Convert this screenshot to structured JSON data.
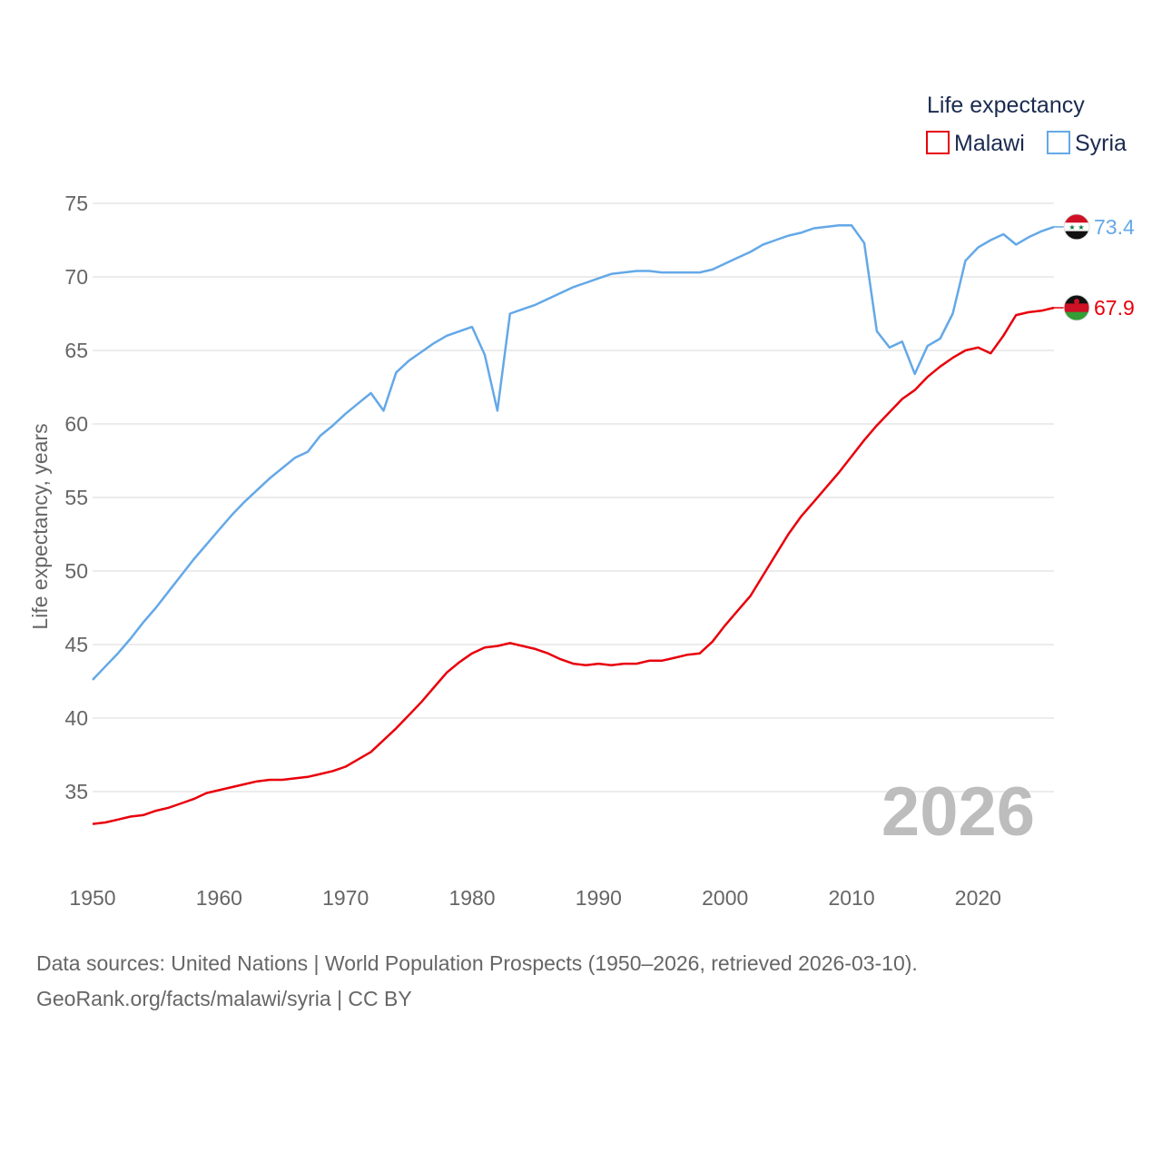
{
  "chart_data": {
    "type": "line",
    "legend_title": "Life expectancy",
    "ylabel": "Life expectancy, years",
    "xlabel": "",
    "xlim": [
      1950,
      2026
    ],
    "ylim": [
      30,
      75
    ],
    "x_ticks": [
      1950,
      1960,
      1970,
      1980,
      1990,
      2000,
      2010,
      2020
    ],
    "y_ticks": [
      35,
      40,
      45,
      50,
      55,
      60,
      65,
      70,
      75
    ],
    "year_watermark": "2026",
    "legend_position": "top-right",
    "series": [
      {
        "name": "Malawi",
        "color": "#e8000b",
        "end_label": "67.9",
        "flag": "malawi-flag",
        "x": [
          1950,
          1951,
          1952,
          1953,
          1954,
          1955,
          1956,
          1957,
          1958,
          1959,
          1960,
          1961,
          1962,
          1963,
          1964,
          1965,
          1966,
          1967,
          1968,
          1969,
          1970,
          1971,
          1972,
          1973,
          1974,
          1975,
          1976,
          1977,
          1978,
          1979,
          1980,
          1981,
          1982,
          1983,
          1984,
          1985,
          1986,
          1987,
          1988,
          1989,
          1990,
          1991,
          1992,
          1993,
          1994,
          1995,
          1996,
          1997,
          1998,
          1999,
          2000,
          2001,
          2002,
          2003,
          2004,
          2005,
          2006,
          2007,
          2008,
          2009,
          2010,
          2011,
          2012,
          2013,
          2014,
          2015,
          2016,
          2017,
          2018,
          2019,
          2020,
          2021,
          2022,
          2023,
          2024,
          2025,
          2026
        ],
        "values": [
          32.8,
          32.9,
          33.1,
          33.3,
          33.4,
          33.7,
          33.9,
          34.2,
          34.5,
          34.9,
          35.1,
          35.3,
          35.5,
          35.7,
          35.8,
          35.8,
          35.9,
          36.0,
          36.2,
          36.4,
          36.7,
          37.2,
          37.7,
          38.5,
          39.3,
          40.2,
          41.1,
          42.1,
          43.1,
          43.8,
          44.4,
          44.8,
          44.9,
          45.1,
          44.9,
          44.7,
          44.4,
          44.0,
          43.7,
          43.6,
          43.7,
          43.6,
          43.7,
          43.7,
          43.9,
          43.9,
          44.1,
          44.3,
          44.4,
          45.2,
          46.3,
          47.3,
          48.3,
          49.7,
          51.1,
          52.5,
          53.7,
          54.7,
          55.7,
          56.7,
          57.8,
          58.9,
          59.9,
          60.8,
          61.7,
          62.3,
          63.2,
          63.9,
          64.5,
          65.0,
          65.2,
          64.8,
          66.0,
          67.4,
          67.6,
          67.7,
          67.9
        ]
      },
      {
        "name": "Syria",
        "color": "#64a8e8",
        "end_label": "73.4",
        "flag": "syria-flag",
        "x": [
          1950,
          1951,
          1952,
          1953,
          1954,
          1955,
          1956,
          1957,
          1958,
          1959,
          1960,
          1961,
          1962,
          1963,
          1964,
          1965,
          1966,
          1967,
          1968,
          1969,
          1970,
          1971,
          1972,
          1973,
          1974,
          1975,
          1976,
          1977,
          1978,
          1979,
          1980,
          1981,
          1982,
          1983,
          1984,
          1985,
          1986,
          1987,
          1988,
          1989,
          1990,
          1991,
          1992,
          1993,
          1994,
          1995,
          1996,
          1997,
          1998,
          1999,
          2000,
          2001,
          2002,
          2003,
          2004,
          2005,
          2006,
          2007,
          2008,
          2009,
          2010,
          2011,
          2012,
          2013,
          2014,
          2015,
          2016,
          2017,
          2018,
          2019,
          2020,
          2021,
          2022,
          2023,
          2024,
          2025,
          2026
        ],
        "values": [
          42.6,
          43.5,
          44.4,
          45.4,
          46.5,
          47.5,
          48.6,
          49.7,
          50.8,
          51.8,
          52.8,
          53.8,
          54.7,
          55.5,
          56.3,
          57.0,
          57.7,
          58.1,
          59.2,
          59.9,
          60.7,
          61.4,
          62.1,
          60.9,
          63.5,
          64.3,
          64.9,
          65.5,
          66.0,
          66.3,
          66.6,
          64.7,
          60.9,
          67.5,
          67.8,
          68.1,
          68.5,
          68.9,
          69.3,
          69.6,
          69.9,
          70.2,
          70.3,
          70.4,
          70.4,
          70.3,
          70.3,
          70.3,
          70.3,
          70.5,
          70.9,
          71.3,
          71.7,
          72.2,
          72.5,
          72.8,
          73.0,
          73.3,
          73.4,
          73.5,
          73.5,
          72.3,
          66.3,
          65.2,
          65.6,
          63.4,
          65.3,
          65.8,
          67.5,
          71.1,
          72.0,
          72.5,
          72.9,
          72.2,
          72.7,
          73.1,
          73.4
        ]
      }
    ]
  },
  "source": {
    "line1": "Data sources: United Nations | World Population Prospects (1950–2026, retrieved 2026-03-10).",
    "line2": "GeoRank.org/facts/malawi/syria | CC BY"
  }
}
